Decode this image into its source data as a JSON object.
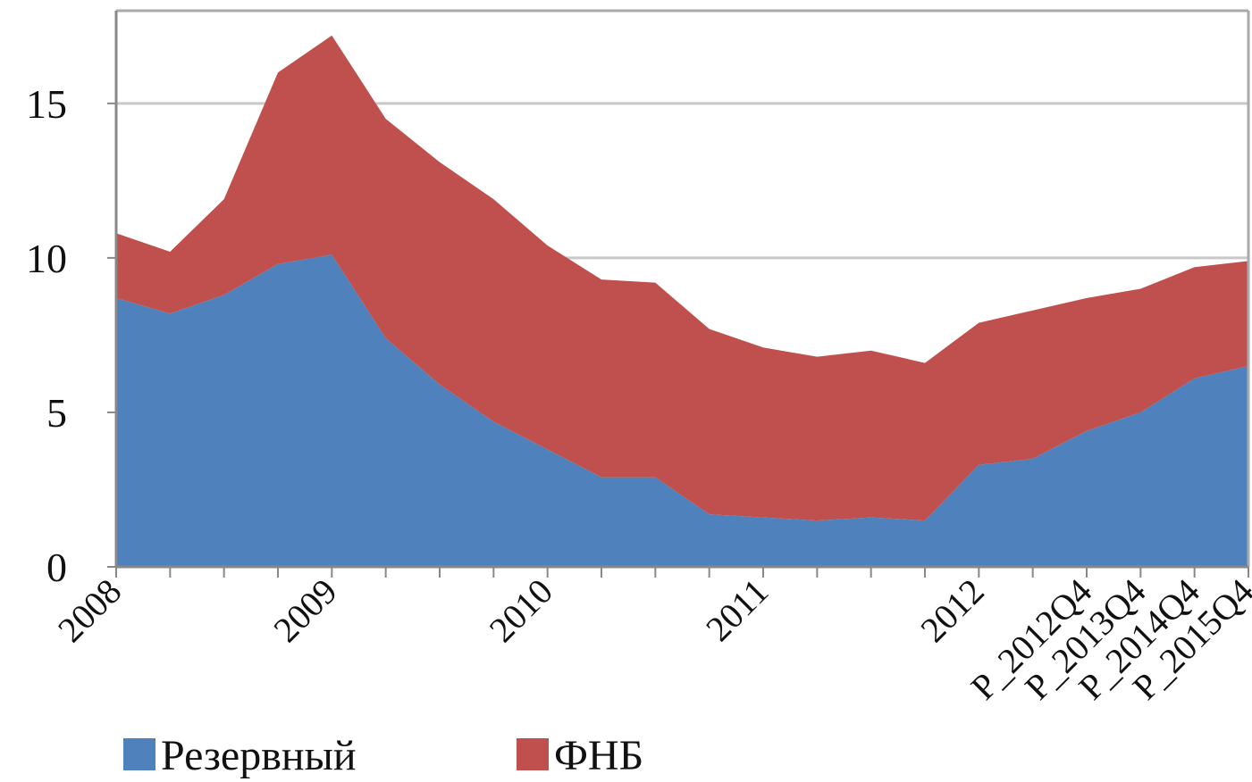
{
  "chart_data": {
    "type": "stacked_area",
    "categories": [
      "2008",
      null,
      null,
      null,
      "2009",
      null,
      null,
      null,
      "2010",
      null,
      null,
      null,
      "2011",
      null,
      null,
      null,
      "2012",
      null,
      "Р_2012Q4",
      "Р_2013Q4",
      "Р_2014Q4",
      "Р_2015Q4"
    ],
    "series": [
      {
        "name": "Резервный",
        "color": "#4f81bd",
        "values": [
          8.7,
          8.2,
          8.8,
          9.8,
          10.1,
          7.4,
          5.9,
          4.7,
          3.8,
          2.9,
          2.9,
          1.7,
          1.6,
          1.5,
          1.6,
          1.5,
          3.3,
          3.5,
          4.4,
          5.0,
          6.1,
          6.5
        ]
      },
      {
        "name": "ФНБ",
        "color": "#c0504d",
        "values": [
          2.1,
          2.0,
          3.1,
          6.2,
          7.1,
          7.1,
          7.2,
          7.2,
          6.6,
          6.4,
          6.3,
          6.0,
          5.5,
          5.3,
          5.4,
          5.1,
          4.6,
          4.8,
          4.3,
          4.0,
          3.6,
          3.4
        ]
      }
    ],
    "ylim": [
      0,
      18
    ],
    "yticks": [
      0,
      5,
      10,
      15
    ],
    "grid": true,
    "legend": "bottom"
  }
}
